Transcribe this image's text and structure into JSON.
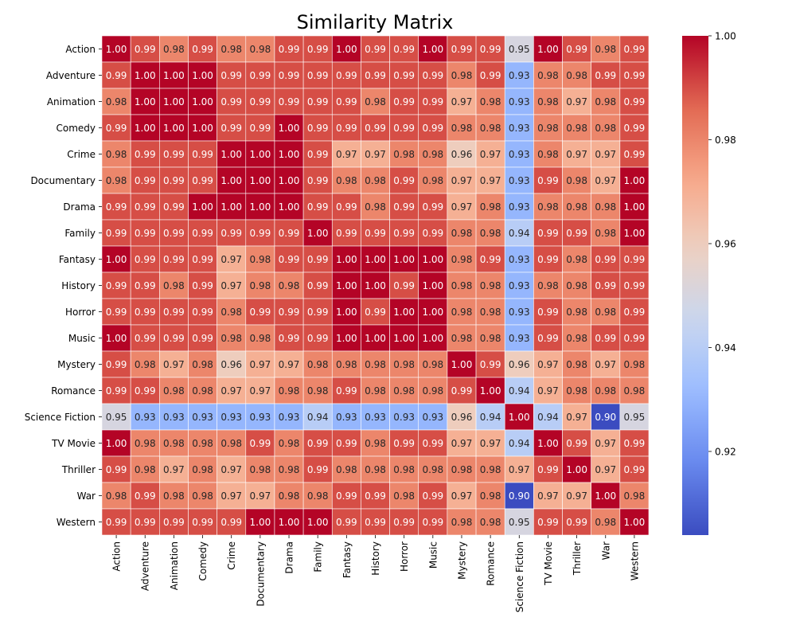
{
  "chart_data": {
    "type": "heatmap",
    "title": "Similarity Matrix",
    "xlabel": "",
    "ylabel": "",
    "categories": [
      "Action",
      "Adventure",
      "Animation",
      "Comedy",
      "Crime",
      "Documentary",
      "Drama",
      "Family",
      "Fantasy",
      "History",
      "Horror",
      "Music",
      "Mystery",
      "Romance",
      "Science Fiction",
      "TV Movie",
      "Thriller",
      "War",
      "Western"
    ],
    "values": [
      [
        1.0,
        0.99,
        0.98,
        0.99,
        0.98,
        0.98,
        0.99,
        0.99,
        1.0,
        0.99,
        0.99,
        1.0,
        0.99,
        0.99,
        0.95,
        1.0,
        0.99,
        0.98,
        0.99
      ],
      [
        0.99,
        1.0,
        1.0,
        1.0,
        0.99,
        0.99,
        0.99,
        0.99,
        0.99,
        0.99,
        0.99,
        0.99,
        0.98,
        0.99,
        0.93,
        0.98,
        0.98,
        0.99,
        0.99
      ],
      [
        0.98,
        1.0,
        1.0,
        1.0,
        0.99,
        0.99,
        0.99,
        0.99,
        0.99,
        0.98,
        0.99,
        0.99,
        0.97,
        0.98,
        0.93,
        0.98,
        0.97,
        0.98,
        0.99
      ],
      [
        0.99,
        1.0,
        1.0,
        1.0,
        0.99,
        0.99,
        1.0,
        0.99,
        0.99,
        0.99,
        0.99,
        0.99,
        0.98,
        0.98,
        0.93,
        0.98,
        0.98,
        0.98,
        0.99
      ],
      [
        0.98,
        0.99,
        0.99,
        0.99,
        1.0,
        1.0,
        1.0,
        0.99,
        0.97,
        0.97,
        0.98,
        0.98,
        0.96,
        0.97,
        0.93,
        0.98,
        0.97,
        0.97,
        0.99
      ],
      [
        0.98,
        0.99,
        0.99,
        0.99,
        1.0,
        1.0,
        1.0,
        0.99,
        0.98,
        0.98,
        0.99,
        0.98,
        0.97,
        0.97,
        0.93,
        0.99,
        0.98,
        0.97,
        1.0
      ],
      [
        0.99,
        0.99,
        0.99,
        1.0,
        1.0,
        1.0,
        1.0,
        0.99,
        0.99,
        0.98,
        0.99,
        0.99,
        0.97,
        0.98,
        0.93,
        0.98,
        0.98,
        0.98,
        1.0
      ],
      [
        0.99,
        0.99,
        0.99,
        0.99,
        0.99,
        0.99,
        0.99,
        1.0,
        0.99,
        0.99,
        0.99,
        0.99,
        0.98,
        0.98,
        0.94,
        0.99,
        0.99,
        0.98,
        1.0
      ],
      [
        1.0,
        0.99,
        0.99,
        0.99,
        0.97,
        0.98,
        0.99,
        0.99,
        1.0,
        1.0,
        1.0,
        1.0,
        0.98,
        0.99,
        0.93,
        0.99,
        0.98,
        0.99,
        0.99
      ],
      [
        0.99,
        0.99,
        0.98,
        0.99,
        0.97,
        0.98,
        0.98,
        0.99,
        1.0,
        1.0,
        0.99,
        1.0,
        0.98,
        0.98,
        0.93,
        0.98,
        0.98,
        0.99,
        0.99
      ],
      [
        0.99,
        0.99,
        0.99,
        0.99,
        0.98,
        0.99,
        0.99,
        0.99,
        1.0,
        0.99,
        1.0,
        1.0,
        0.98,
        0.98,
        0.93,
        0.99,
        0.98,
        0.98,
        0.99
      ],
      [
        1.0,
        0.99,
        0.99,
        0.99,
        0.98,
        0.98,
        0.99,
        0.99,
        1.0,
        1.0,
        1.0,
        1.0,
        0.98,
        0.98,
        0.93,
        0.99,
        0.98,
        0.99,
        0.99
      ],
      [
        0.99,
        0.98,
        0.97,
        0.98,
        0.96,
        0.97,
        0.97,
        0.98,
        0.98,
        0.98,
        0.98,
        0.98,
        1.0,
        0.99,
        0.96,
        0.97,
        0.98,
        0.97,
        0.98
      ],
      [
        0.99,
        0.99,
        0.98,
        0.98,
        0.97,
        0.97,
        0.98,
        0.98,
        0.99,
        0.98,
        0.98,
        0.98,
        0.99,
        1.0,
        0.94,
        0.97,
        0.98,
        0.98,
        0.98
      ],
      [
        0.95,
        0.93,
        0.93,
        0.93,
        0.93,
        0.93,
        0.93,
        0.94,
        0.93,
        0.93,
        0.93,
        0.93,
        0.96,
        0.94,
        1.0,
        0.94,
        0.97,
        0.9,
        0.95
      ],
      [
        1.0,
        0.98,
        0.98,
        0.98,
        0.98,
        0.99,
        0.98,
        0.99,
        0.99,
        0.98,
        0.99,
        0.99,
        0.97,
        0.97,
        0.94,
        1.0,
        0.99,
        0.97,
        0.99
      ],
      [
        0.99,
        0.98,
        0.97,
        0.98,
        0.97,
        0.98,
        0.98,
        0.99,
        0.98,
        0.98,
        0.98,
        0.98,
        0.98,
        0.98,
        0.97,
        0.99,
        1.0,
        0.97,
        0.99
      ],
      [
        0.98,
        0.99,
        0.98,
        0.98,
        0.97,
        0.97,
        0.98,
        0.98,
        0.99,
        0.99,
        0.98,
        0.99,
        0.97,
        0.98,
        0.9,
        0.97,
        0.97,
        1.0,
        0.98
      ],
      [
        0.99,
        0.99,
        0.99,
        0.99,
        0.99,
        1.0,
        1.0,
        1.0,
        0.99,
        0.99,
        0.99,
        0.99,
        0.98,
        0.98,
        0.95,
        0.99,
        0.99,
        0.98,
        1.0
      ]
    ],
    "value_format": "0.00",
    "colormap": "coolwarm",
    "colormap_stops": [
      "#3b4cc0",
      "#6788ee",
      "#9abbff",
      "#c9d7f0",
      "#edd1c2",
      "#f7a889",
      "#e26952",
      "#b40426"
    ],
    "color_range": [
      0.9039,
      1.0
    ],
    "colorbar_ticks": [
      "0.92",
      "0.94",
      "0.96",
      "0.98",
      "1.00"
    ],
    "colorbar_tick_values": [
      0.92,
      0.94,
      0.96,
      0.98,
      1.0
    ],
    "grid": true,
    "grid_color": "#ffffff"
  }
}
